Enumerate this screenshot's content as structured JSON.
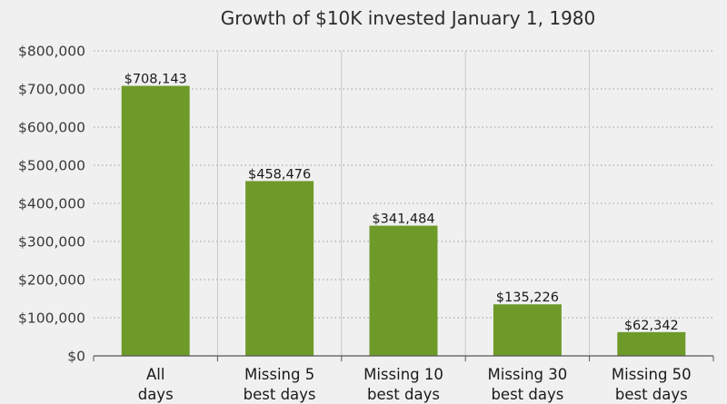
{
  "chart_data": {
    "type": "bar",
    "title": "Growth of $10K invested January 1, 1980",
    "xlabel": "",
    "ylabel": "",
    "categories": [
      [
        "All",
        "days"
      ],
      [
        "Missing 5",
        "best days"
      ],
      [
        "Missing 10",
        "best days"
      ],
      [
        "Missing 30",
        "best days"
      ],
      [
        "Missing 50",
        "best days"
      ]
    ],
    "values": [
      708143,
      458476,
      341484,
      135226,
      62342
    ],
    "data_labels": [
      "$708,143",
      "$458,476",
      "$341,484",
      "$135,226",
      "$62,342"
    ],
    "ylim": [
      0,
      800000
    ],
    "yticks": [
      0,
      100000,
      200000,
      300000,
      400000,
      500000,
      600000,
      700000,
      800000
    ],
    "ytick_labels": [
      "$0",
      "$100,000",
      "$200,000",
      "$300,000",
      "$400,000",
      "$500,000",
      "$600,000",
      "$700,000",
      "$800,000"
    ],
    "grid": "horizontal dotted",
    "legend": "none",
    "colors": {
      "bar": "#6e9a2a",
      "background": "#f0f0f0",
      "grid": "#9a9a9a",
      "separator": "#c8c8c8",
      "axis": "#555555"
    }
  }
}
